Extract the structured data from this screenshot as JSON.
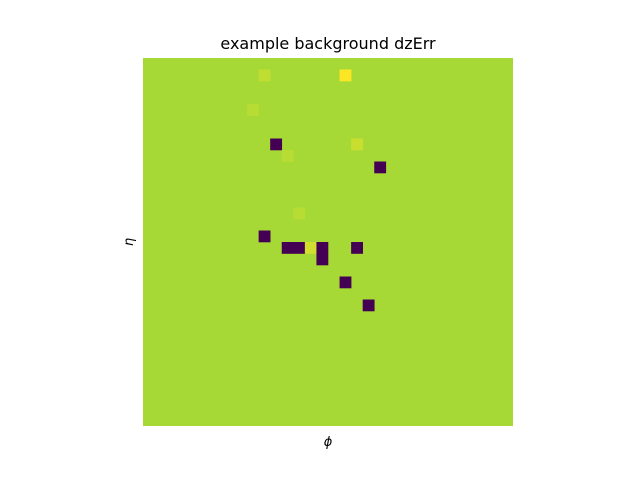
{
  "chart_data": {
    "type": "heatmap",
    "title": "example background dzErr",
    "xlabel": "ϕ",
    "ylabel": "η",
    "grid": false,
    "colormap": "viridis",
    "colors": {
      "background": "#a6d936",
      "low": "#440154",
      "high": "#fde725",
      "faint_high": "#b2db33"
    },
    "n_phi_bins": 32,
    "n_eta_bins": 32,
    "background_level": 0.9,
    "cells": [
      {
        "eta_bin": 1,
        "phi_bin": 17,
        "value": 1.0
      },
      {
        "eta_bin": 1,
        "phi_bin": 10,
        "value": 0.93
      },
      {
        "eta_bin": 4,
        "phi_bin": 9,
        "value": 0.92
      },
      {
        "eta_bin": 7,
        "phi_bin": 11,
        "value": 0.0
      },
      {
        "eta_bin": 7,
        "phi_bin": 18,
        "value": 0.94
      },
      {
        "eta_bin": 8,
        "phi_bin": 12,
        "value": 0.92
      },
      {
        "eta_bin": 9,
        "phi_bin": 20,
        "value": 0.0
      },
      {
        "eta_bin": 13,
        "phi_bin": 13,
        "value": 0.92
      },
      {
        "eta_bin": 15,
        "phi_bin": 10,
        "value": 0.0
      },
      {
        "eta_bin": 16,
        "phi_bin": 12,
        "value": 0.0
      },
      {
        "eta_bin": 16,
        "phi_bin": 13,
        "value": 0.0
      },
      {
        "eta_bin": 16,
        "phi_bin": 14,
        "value": 0.95
      },
      {
        "eta_bin": 16,
        "phi_bin": 15,
        "value": 0.0
      },
      {
        "eta_bin": 16,
        "phi_bin": 18,
        "value": 0.0
      },
      {
        "eta_bin": 17,
        "phi_bin": 15,
        "value": 0.0
      },
      {
        "eta_bin": 19,
        "phi_bin": 17,
        "value": 0.0
      },
      {
        "eta_bin": 21,
        "phi_bin": 19,
        "value": 0.0
      }
    ]
  }
}
